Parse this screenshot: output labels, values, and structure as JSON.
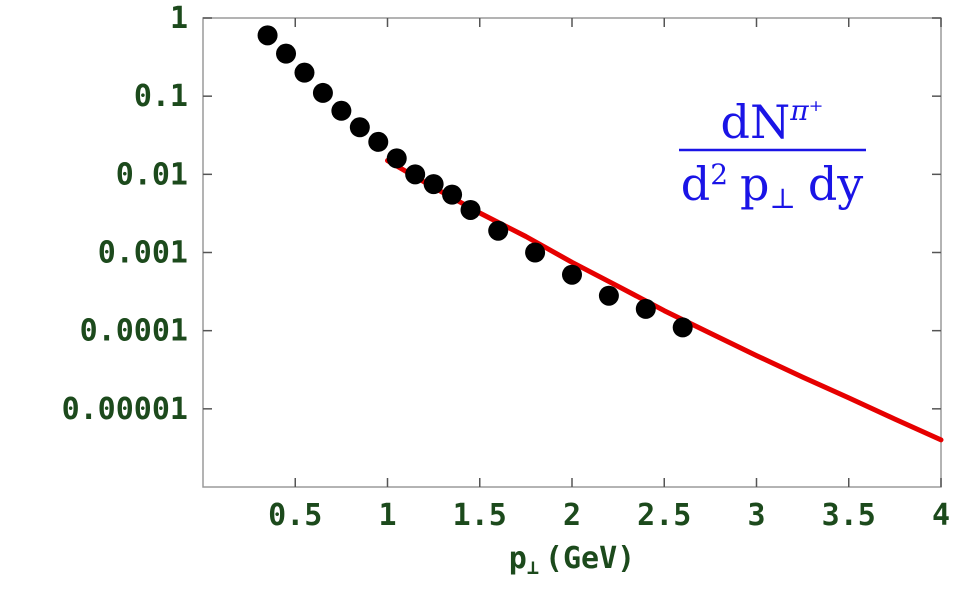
{
  "chart_data": {
    "type": "scatter",
    "xlabel": {
      "main": "p",
      "subscript": "⊥",
      "unit": "(GeV)"
    },
    "ylabel": "",
    "xlim": [
      0,
      4
    ],
    "ylim": [
      1e-06,
      1
    ],
    "y_scale": "log",
    "grid": false,
    "x_ticks": [
      {
        "value": 0.5,
        "label": "0.5"
      },
      {
        "value": 1,
        "label": "1"
      },
      {
        "value": 1.5,
        "label": "1.5"
      },
      {
        "value": 2,
        "label": "2"
      },
      {
        "value": 2.5,
        "label": "2.5"
      },
      {
        "value": 3,
        "label": "3"
      },
      {
        "value": 3.5,
        "label": "3.5"
      },
      {
        "value": 4,
        "label": "4"
      }
    ],
    "y_ticks": [
      {
        "value": 1,
        "label": "1"
      },
      {
        "value": 0.1,
        "label": "0.1"
      },
      {
        "value": 0.01,
        "label": "0.01"
      },
      {
        "value": 0.001,
        "label": "0.001"
      },
      {
        "value": 0.0001,
        "label": "0.0001"
      },
      {
        "value": 1e-05,
        "label": "0.00001"
      }
    ],
    "annotation": {
      "numerator": "dN",
      "numerator_sup": "π⁺",
      "denominator_d": "d",
      "denominator_sup": "2",
      "denominator_p": "p",
      "denominator_sub": "⊥",
      "denominator_tail": "dy",
      "color": "#1a14e6"
    },
    "series": [
      {
        "type": "scatter",
        "color": "#000000",
        "x": [
          0.35,
          0.45,
          0.55,
          0.65,
          0.75,
          0.85,
          0.95,
          1.05,
          1.15,
          1.25,
          1.35,
          1.45,
          1.6,
          1.8,
          2.0,
          2.2,
          2.4,
          2.6
        ],
        "y": [
          0.6,
          0.35,
          0.2,
          0.11,
          0.065,
          0.04,
          0.026,
          0.016,
          0.01,
          0.0075,
          0.0055,
          0.0035,
          0.0019,
          0.001,
          0.00052,
          0.00028,
          0.00019,
          0.00011
        ]
      },
      {
        "type": "line",
        "color": "#e60000",
        "x": [
          1.0,
          1.25,
          1.5,
          1.75,
          2.0,
          2.25,
          2.5,
          2.75,
          3.0,
          3.25,
          3.5,
          3.75,
          4.0
        ],
        "y": [
          0.015,
          0.0068,
          0.0032,
          0.0016,
          0.00075,
          0.00037,
          0.00018,
          9.25e-05,
          4.8e-05,
          2.55e-05,
          1.38e-05,
          7.4e-06,
          4e-06
        ]
      }
    ]
  }
}
